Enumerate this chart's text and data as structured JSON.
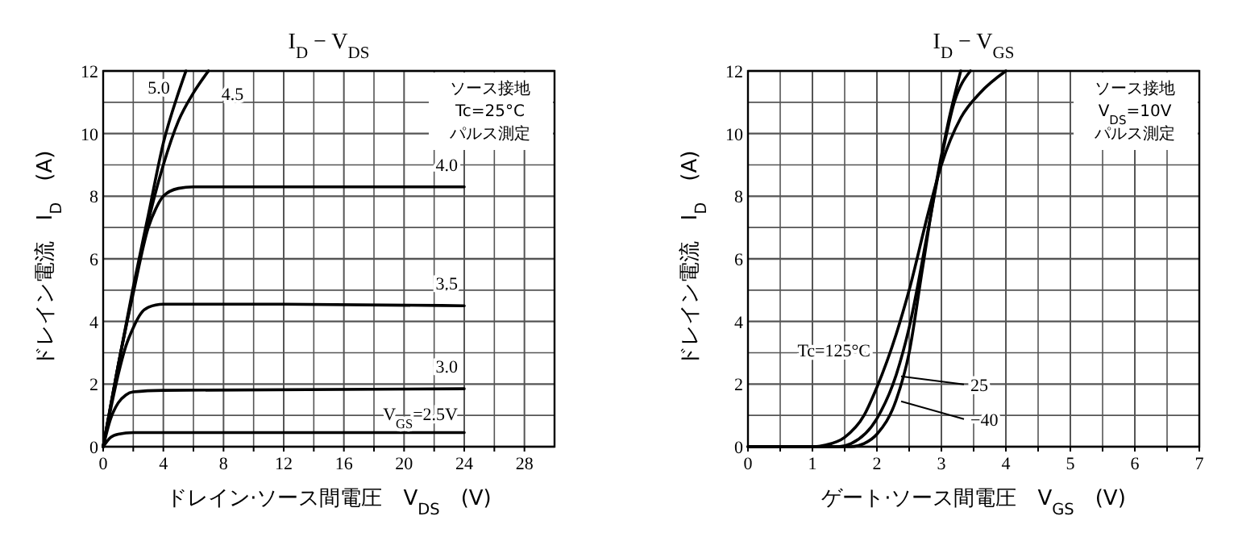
{
  "chart_data": [
    {
      "type": "line",
      "title": "I$_{D}$ − V$_{DS}$",
      "xlabel": "ドレイン·ソース間電圧　V$_{DS}$　(V)",
      "ylabel": "ドレイン電流　I$_{D}$　(A)",
      "xlim": [
        0,
        30
      ],
      "ylim": [
        0,
        12
      ],
      "xticks": [
        0,
        {
          "value": 2,
          "label": null
        },
        4,
        {
          "value": 6,
          "label": null
        },
        8,
        {
          "value": 10,
          "label": null
        },
        12,
        {
          "value": 14,
          "label": null
        },
        16,
        {
          "value": 18,
          "label": null
        },
        20,
        {
          "value": 22,
          "label": null
        },
        24,
        {
          "value": 26,
          "label": null
        },
        28
      ],
      "yticks": [
        0,
        {
          "value": 1,
          "label": null
        },
        2,
        {
          "value": 3,
          "label": null
        },
        4,
        {
          "value": 5,
          "label": null
        },
        6,
        {
          "value": 7,
          "label": null
        },
        8,
        {
          "value": 9,
          "label": null
        },
        10,
        {
          "value": 11,
          "label": null
        },
        12
      ],
      "grid": true,
      "marker": "none",
      "line_style": "solid",
      "annotations": [
        "ソース接地",
        "Tc=25°C",
        "パルス測定"
      ],
      "series": [
        {
          "name": "5.0",
          "color": "#000000",
          "x": [
            0,
            1,
            2,
            3,
            4,
            5,
            5.5
          ],
          "values": [
            0,
            2.6,
            5.1,
            7.4,
            9.7,
            11.3,
            12
          ]
        },
        {
          "name": "4.5",
          "color": "#000000",
          "x": [
            0,
            1,
            2,
            3,
            4,
            5,
            6,
            7
          ],
          "values": [
            0,
            2.6,
            5,
            7.2,
            9,
            10.4,
            11.3,
            12
          ]
        },
        {
          "name": "4.0",
          "color": "#000000",
          "x": [
            0,
            1,
            2,
            3,
            3.5,
            4,
            5,
            6,
            24
          ],
          "values": [
            0,
            2.6,
            4.9,
            7,
            7.6,
            8,
            8.25,
            8.3,
            8.3
          ]
        },
        {
          "name": "3.5",
          "color": "#000000",
          "x": [
            0,
            0.5,
            1,
            1.5,
            2,
            2.5,
            3,
            4,
            12,
            24
          ],
          "values": [
            0,
            1.2,
            2.3,
            3.2,
            3.8,
            4.25,
            4.45,
            4.55,
            4.55,
            4.5
          ]
        },
        {
          "name": "3.0",
          "color": "#000000",
          "x": [
            0,
            0.5,
            1,
            1.5,
            2,
            4,
            24
          ],
          "values": [
            0,
            0.9,
            1.4,
            1.65,
            1.75,
            1.8,
            1.85
          ]
        },
        {
          "name": "V$_{GS}$=2.5V",
          "color": "#000000",
          "x": [
            0,
            0.5,
            1,
            2,
            24
          ],
          "values": [
            0,
            0.3,
            0.4,
            0.45,
            0.45
          ]
        }
      ]
    },
    {
      "type": "line",
      "title": "I$_{D}$ − V$_{GS}$",
      "xlabel": "ゲート·ソース間電圧　V$_{GS}$　(V)",
      "ylabel": "ドレイン電流　I$_{D}$　(A)",
      "xlim": [
        0,
        7
      ],
      "ylim": [
        0,
        12
      ],
      "xticks": [
        0,
        {
          "value": 0.5,
          "label": null
        },
        1,
        {
          "value": 1.5,
          "label": null
        },
        2,
        {
          "value": 2.5,
          "label": null
        },
        3,
        {
          "value": 3.5,
          "label": null
        },
        4,
        {
          "value": 4.5,
          "label": null
        },
        5,
        {
          "value": 5.5,
          "label": null
        },
        6,
        {
          "value": 6.5,
          "label": null
        },
        7
      ],
      "yticks": [
        0,
        {
          "value": 1,
          "label": null
        },
        2,
        {
          "value": 3,
          "label": null
        },
        4,
        {
          "value": 5,
          "label": null
        },
        6,
        {
          "value": 7,
          "label": null
        },
        8,
        {
          "value": 9,
          "label": null
        },
        10,
        {
          "value": 11,
          "label": null
        },
        12
      ],
      "grid": true,
      "legend": "bottom left",
      "marker": "none",
      "line_style": "solid",
      "annotations": [
        "ソース接地",
        "V$_{DS}$=10V",
        "パルス測定"
      ],
      "series": [
        {
          "name": "Tc=125°C",
          "color": "#000000",
          "x": [
            0,
            1,
            1.2,
            1.5,
            1.8,
            2,
            2.3,
            2.5,
            2.8,
            3,
            3.3,
            3.6,
            4
          ],
          "values": [
            0,
            0,
            0.05,
            0.3,
            1,
            1.9,
            3.6,
            5,
            7.5,
            9,
            10.5,
            11.3,
            12
          ]
        },
        {
          "name": "25",
          "color": "#000000",
          "x": [
            0,
            1.4,
            1.6,
            2,
            2.3,
            2.5,
            2.8,
            3,
            3.2,
            3.45
          ],
          "values": [
            0,
            0,
            0.1,
            0.9,
            2.3,
            3.8,
            7,
            9.2,
            11,
            12
          ]
        },
        {
          "name": "−40",
          "color": "#000000",
          "x": [
            0,
            1.6,
            1.8,
            2,
            2.3,
            2.5,
            2.7,
            2.9,
            3.1,
            3.3
          ],
          "values": [
            0,
            0,
            0.1,
            0.4,
            1.5,
            3,
            5.6,
            8.2,
            10.3,
            12
          ]
        }
      ]
    }
  ]
}
